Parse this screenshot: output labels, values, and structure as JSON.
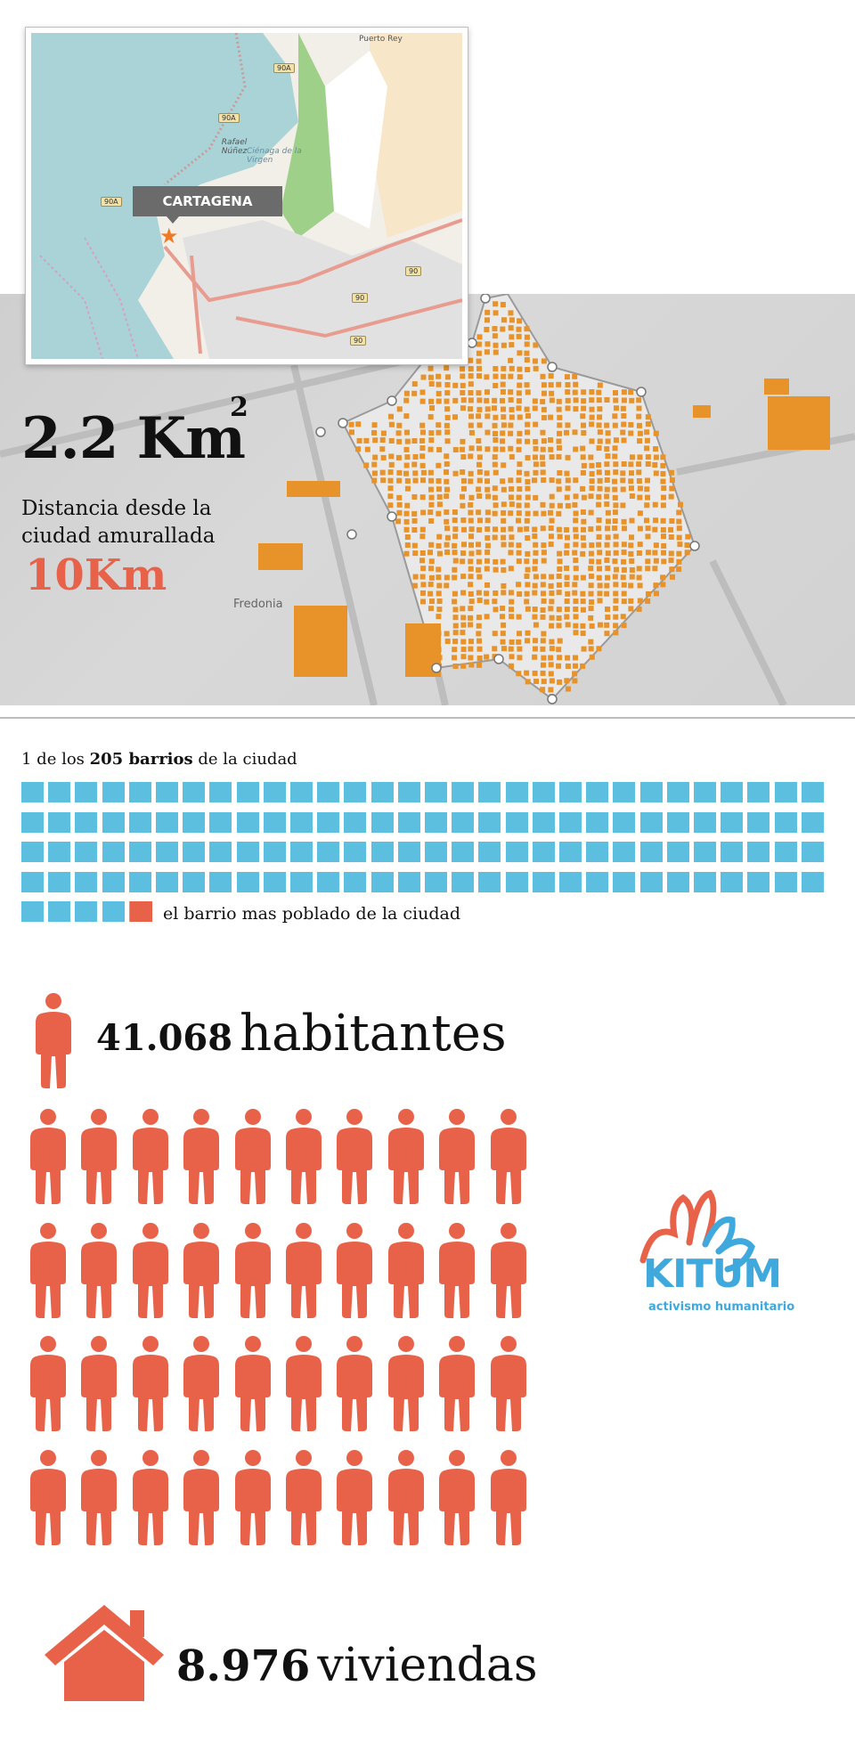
{
  "inset_map": {
    "city_label": "CARTAGENA",
    "place_labels": [
      "Puerto Rey",
      "Rafael Núñez",
      "Ciénaga de la Virgen"
    ],
    "road_shields": [
      "90A",
      "90A",
      "90A",
      "90",
      "90",
      "90"
    ]
  },
  "satellite": {
    "place_label": "Fredonia"
  },
  "area": {
    "value": "2.2 Km",
    "superscript": "2"
  },
  "distance": {
    "label": "Distancia desde la ciudad amurallada",
    "value": "10Km"
  },
  "barrios": {
    "caption_prefix": "1 de los ",
    "caption_bold": "205 barrios",
    "caption_suffix": " de la ciudad",
    "legend": "el barrio mas poblado de la ciudad",
    "total_squares": 125,
    "highlight_index": 125,
    "square_color": "#5cbfe0",
    "highlight_color": "#e8624a"
  },
  "population": {
    "number": "41.068",
    "unit": "habitantes",
    "people_icons": 40,
    "icon_color": "#e8624a"
  },
  "logo": {
    "name": "KITUM",
    "tagline": "activismo humanitario"
  },
  "housing": {
    "number": "8.976",
    "unit": "viviendas"
  },
  "colors": {
    "accent": "#e8624a",
    "blue": "#5cbfe0",
    "settlement": "#e8922a"
  }
}
